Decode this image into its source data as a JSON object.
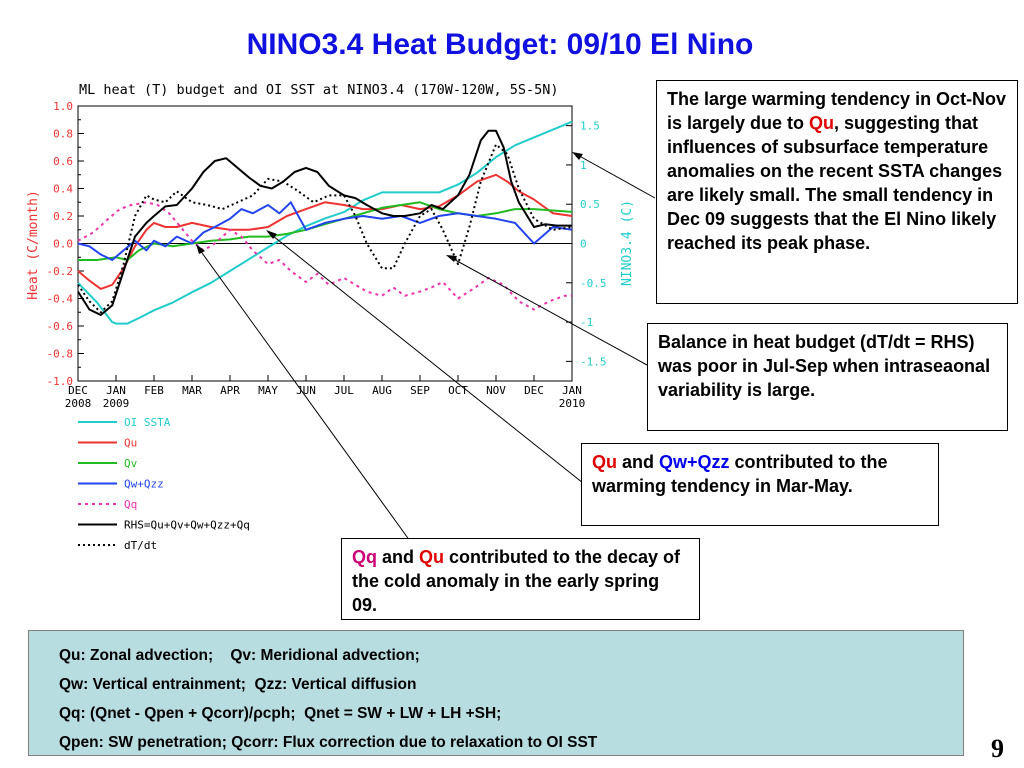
{
  "slide": {
    "title": "NINO3.4 Heat Budget: 09/10 El Nino",
    "page_number": "9"
  },
  "chart_data": {
    "type": "line",
    "title": "ML heat (T) budget and OI SST at NINO3.4 (170W-120W, 5S-5N)",
    "ylabel": "Heat (C/month)",
    "y2label": "NINO3.4 (C)",
    "ylim": [
      -1.0,
      1.0
    ],
    "y2lim": [
      -1.75,
      1.75
    ],
    "x_axis": {
      "ticks": [
        "DEC",
        "JAN",
        "FEB",
        "MAR",
        "APR",
        "MAY",
        "JUN",
        "JUL",
        "AUG",
        "SEP",
        "OCT",
        "NOV",
        "DEC",
        "JAN"
      ],
      "years": [
        "2008",
        "2009",
        "2010"
      ],
      "range_months": [
        0,
        13
      ]
    },
    "y_ticks": [
      "1.0",
      "0.8",
      "0.6",
      "0.4",
      "0.2",
      "0.0",
      "-0.2",
      "-0.4",
      "-0.6",
      "-0.8",
      "-1.0"
    ],
    "y2_ticks": [
      "1.5",
      "1",
      "0.5",
      "0",
      "-0.5",
      "-1",
      "-1.5"
    ],
    "grid": false,
    "series": [
      {
        "name": "OI SSTA",
        "axis": "right",
        "color": "#22cccc",
        "dash": "",
        "x": [
          0,
          0.5,
          0.9,
          1,
          1.3,
          1.6,
          2,
          2.5,
          3,
          3.5,
          4,
          4.5,
          5,
          5.5,
          6,
          6.5,
          7,
          7.5,
          8,
          8.5,
          9,
          9.5,
          10,
          10.5,
          11,
          11.5,
          12,
          12.5,
          13
        ],
        "y": [
          -0.5,
          -0.75,
          -1.0,
          -1.02,
          -1.02,
          -0.95,
          -0.85,
          -0.75,
          -0.62,
          -0.5,
          -0.35,
          -0.2,
          -0.05,
          0.1,
          0.22,
          0.32,
          0.4,
          0.55,
          0.65,
          0.65,
          0.65,
          0.65,
          0.75,
          0.9,
          1.1,
          1.25,
          1.35,
          1.45,
          1.55
        ]
      },
      {
        "name": "Qu",
        "axis": "left",
        "color": "#ee3333",
        "dash": "",
        "x": [
          0,
          0.3,
          0.6,
          0.9,
          1.2,
          1.5,
          1.8,
          2,
          2.3,
          2.6,
          3,
          3.5,
          4,
          4.5,
          5,
          5.5,
          6,
          6.5,
          7,
          7.5,
          8,
          8.5,
          9,
          9.5,
          10,
          10.5,
          11,
          11.3,
          11.6,
          12,
          12.5,
          13
        ],
        "y": [
          -0.2,
          -0.27,
          -0.33,
          -0.3,
          -0.18,
          -0.02,
          0.1,
          0.15,
          0.12,
          0.12,
          0.15,
          0.12,
          0.1,
          0.1,
          0.12,
          0.2,
          0.25,
          0.3,
          0.28,
          0.25,
          0.25,
          0.28,
          0.25,
          0.27,
          0.35,
          0.45,
          0.5,
          0.45,
          0.38,
          0.32,
          0.22,
          0.2
        ]
      },
      {
        "name": "Qv",
        "axis": "left",
        "color": "#22bb22",
        "dash": "",
        "x": [
          0,
          0.5,
          1,
          1.3,
          1.6,
          2,
          2.5,
          3,
          3.5,
          4,
          4.5,
          5,
          5.5,
          6,
          6.5,
          7,
          7.5,
          8,
          8.5,
          9,
          9.5,
          10,
          10.5,
          11,
          11.5,
          12,
          12.5,
          13
        ],
        "y": [
          -0.12,
          -0.12,
          -0.1,
          -0.12,
          -0.05,
          0.0,
          -0.02,
          0.0,
          0.02,
          0.03,
          0.05,
          0.05,
          0.07,
          0.1,
          0.14,
          0.18,
          0.22,
          0.26,
          0.28,
          0.3,
          0.25,
          0.22,
          0.2,
          0.22,
          0.25,
          0.25,
          0.24,
          0.23
        ]
      },
      {
        "name": "Qw+Qzz",
        "axis": "left",
        "color": "#2244ee",
        "dash": "",
        "x": [
          0,
          0.3,
          0.6,
          0.9,
          1.2,
          1.5,
          1.8,
          2,
          2.3,
          2.6,
          3,
          3.3,
          3.6,
          4,
          4.3,
          4.6,
          5,
          5.3,
          5.6,
          6,
          6.5,
          7,
          7.5,
          8,
          8.5,
          9,
          9.5,
          10,
          10.5,
          11,
          11.5,
          12,
          12.5,
          13
        ],
        "y": [
          0.0,
          -0.02,
          -0.08,
          -0.12,
          -0.05,
          0.02,
          -0.05,
          0.02,
          -0.02,
          0.05,
          0.0,
          0.08,
          0.12,
          0.18,
          0.25,
          0.22,
          0.28,
          0.22,
          0.3,
          0.1,
          0.15,
          0.18,
          0.2,
          0.18,
          0.2,
          0.15,
          0.2,
          0.22,
          0.2,
          0.18,
          0.15,
          0.0,
          0.12,
          0.1
        ]
      },
      {
        "name": "Qq",
        "axis": "left",
        "color": "#ee33aa",
        "dash": "3,4",
        "x": [
          0,
          0.4,
          0.8,
          1.1,
          1.4,
          1.8,
          2.1,
          2.4,
          2.7,
          3,
          3.3,
          3.6,
          4,
          4.3,
          4.6,
          5,
          5.3,
          5.6,
          6,
          6.3,
          6.6,
          7,
          7.3,
          7.6,
          8,
          8.3,
          8.6,
          9,
          9.3,
          9.6,
          10,
          10.4,
          10.8,
          11.2,
          11.6,
          12,
          12.4,
          12.8,
          13
        ],
        "y": [
          0.02,
          0.08,
          0.18,
          0.25,
          0.28,
          0.3,
          0.28,
          0.22,
          0.12,
          0.02,
          -0.05,
          0.0,
          0.1,
          0.05,
          -0.05,
          -0.15,
          -0.12,
          -0.2,
          -0.28,
          -0.22,
          -0.3,
          -0.25,
          -0.3,
          -0.35,
          -0.38,
          -0.32,
          -0.38,
          -0.35,
          -0.32,
          -0.28,
          -0.4,
          -0.33,
          -0.25,
          -0.3,
          -0.42,
          -0.48,
          -0.42,
          -0.38,
          -0.38
        ]
      },
      {
        "name": "RHS=Qu+Qv+Qw+Qzz+Qq",
        "axis": "left",
        "color": "#000000",
        "dash": "",
        "x": [
          0,
          0.3,
          0.6,
          0.9,
          1.2,
          1.5,
          1.8,
          2,
          2.3,
          2.6,
          3,
          3.3,
          3.6,
          3.9,
          4.2,
          4.5,
          4.8,
          5.1,
          5.4,
          5.7,
          6,
          6.3,
          6.6,
          7,
          7.3,
          7.6,
          8,
          8.3,
          8.6,
          9,
          9.3,
          9.6,
          10,
          10.3,
          10.6,
          10.8,
          11,
          11.2,
          11.4,
          11.6,
          12,
          12.3,
          12.6,
          13
        ],
        "y": [
          -0.35,
          -0.48,
          -0.52,
          -0.45,
          -0.2,
          0.05,
          0.15,
          0.2,
          0.27,
          0.28,
          0.4,
          0.52,
          0.6,
          0.62,
          0.55,
          0.48,
          0.42,
          0.4,
          0.45,
          0.52,
          0.55,
          0.52,
          0.42,
          0.35,
          0.33,
          0.28,
          0.22,
          0.2,
          0.2,
          0.22,
          0.28,
          0.25,
          0.35,
          0.5,
          0.75,
          0.82,
          0.82,
          0.7,
          0.45,
          0.3,
          0.12,
          0.14,
          0.13,
          0.13
        ]
      },
      {
        "name": "dT/dt",
        "axis": "left",
        "color": "#000000",
        "dash": "2,3",
        "x": [
          0,
          0.3,
          0.6,
          0.9,
          1.2,
          1.5,
          1.8,
          2,
          2.3,
          2.6,
          3,
          3.4,
          3.8,
          4.2,
          4.6,
          5,
          5.4,
          5.8,
          6.2,
          6.6,
          7,
          7.3,
          7.6,
          8,
          8.3,
          8.6,
          9,
          9.3,
          9.6,
          10,
          10.3,
          10.6,
          11,
          11.3,
          11.6,
          12,
          12.5,
          13
        ],
        "y": [
          -0.3,
          -0.42,
          -0.5,
          -0.42,
          -0.15,
          0.2,
          0.35,
          0.32,
          0.3,
          0.38,
          0.3,
          0.28,
          0.25,
          0.3,
          0.35,
          0.47,
          0.45,
          0.38,
          0.3,
          0.35,
          0.35,
          0.2,
          0.0,
          -0.18,
          -0.18,
          0.0,
          0.2,
          0.25,
          0.1,
          -0.15,
          0.12,
          0.45,
          0.72,
          0.65,
          0.4,
          0.18,
          0.1,
          0.12
        ]
      }
    ],
    "legend_position": "bottom-left"
  },
  "callouts": {
    "c1": {
      "text": "The large warming tendency in Oct-Nov is largely due to ",
      "hl": "Qu",
      "rest": ", suggesting that influences of subsurface temperature anomalies on the recent SSTA changes are likely small.  The small tendency in Dec 09 suggests that the El Nino likely reached its peak phase."
    },
    "c2": {
      "text": "Balance in heat budget (dT/dt = RHS) was poor in Jul-Sep when intraseaonal variability is large."
    },
    "c3": {
      "hl1": "Qu",
      "and": " and ",
      "hl2": "Qw+Qzz",
      "rest": " contributed to the warming tendency in Mar-May."
    },
    "c4": {
      "hl1": "Qq",
      "and": " and ",
      "hl2": "Qu",
      "rest": " contributed to the decay of the cold anomaly in the early spring 09."
    }
  },
  "notes": [
    "Qu: Zonal advection;    Qv: Meridional advection;",
    "Qw: Vertical entrainment;  Qzz: Vertical diffusion",
    "Qq: (Qnet - Qpen + Qcorr)/ρcph;  Qnet = SW + LW + LH +SH;",
    "Qpen: SW penetration; Qcorr: Flux correction due to relaxation to OI SST"
  ]
}
